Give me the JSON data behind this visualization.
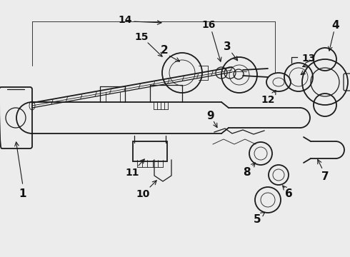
{
  "bg_color": "#ececec",
  "line_color": "#1a1a1a",
  "label_color": "#111111",
  "lw_main": 1.3,
  "lw_med": 0.9,
  "lw_thin": 0.6,
  "label_fontsize": 11,
  "figw": 4.9,
  "figh": 3.6,
  "dpi": 100,
  "xlim": [
    0,
    490
  ],
  "ylim": [
    0,
    360
  ]
}
